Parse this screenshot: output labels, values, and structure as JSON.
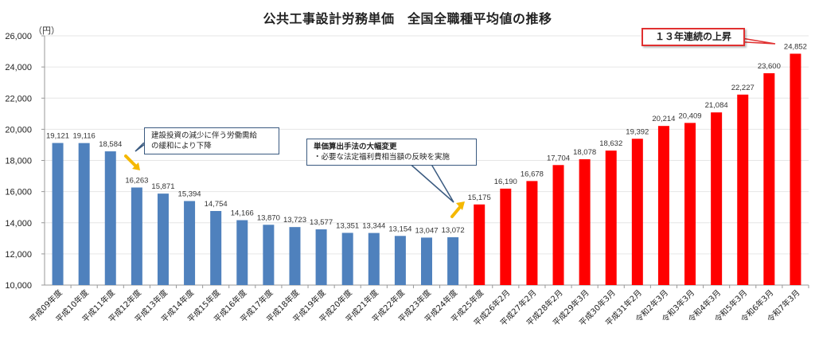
{
  "header": {
    "title": "公共工事設計労務単価　全国全職種平均値の推移",
    "unit_label": "（円）"
  },
  "annotations": {
    "drop_note": "建設投資の減少に伴う労働需給の緩和により下降",
    "drop_note_line1": "建設投資の減少に伴う労働需給",
    "drop_note_line2": "の緩和により下降",
    "method_change_title": "単価算出手法の大幅変更",
    "method_change_detail": "・必要な法定福利費相当額の反映を実施",
    "rise_note": "１３年連続の上昇"
  },
  "colors": {
    "decline_bar": "#4f81bd",
    "rise_bar": "#ff0000",
    "arrow": "#f5b800",
    "callout_blue_border": "#3a5a80",
    "callout_red_border": "#e03030",
    "grid": "#e6e6e6"
  },
  "chart_data": {
    "type": "bar",
    "title": "公共工事設計労務単価　全国全職種平均値の推移",
    "xlabel": "",
    "ylabel": "（円）",
    "ylim": [
      10000,
      26000
    ],
    "yticks": [
      10000,
      12000,
      14000,
      16000,
      18000,
      20000,
      22000,
      24000,
      26000
    ],
    "ytick_labels": [
      "10,000",
      "12,000",
      "14,000",
      "16,000",
      "18,000",
      "20,000",
      "22,000",
      "24,000",
      "26,000"
    ],
    "grid": true,
    "legend": null,
    "categories": [
      "平成09年度",
      "平成10年度",
      "平成11年度",
      "平成12年度",
      "平成13年度",
      "平成14年度",
      "平成15年度",
      "平成16年度",
      "平成17年度",
      "平成18年度",
      "平成19年度",
      "平成20年度",
      "平成21年度",
      "平成22年度",
      "平成23年度",
      "平成24年度",
      "平成25年度",
      "平成26年2月",
      "平成27年2月",
      "平成28年2月",
      "平成29年3月",
      "平成30年3月",
      "平成31年2月",
      "令和2年3月",
      "令和3年3月",
      "令和4年3月",
      "令和5年3月",
      "令和6年3月",
      "令和7年3月"
    ],
    "values": [
      19121,
      19116,
      18584,
      16263,
      15871,
      15394,
      14754,
      14166,
      13870,
      13723,
      13577,
      13351,
      13344,
      13154,
      13047,
      13072,
      15175,
      16190,
      16678,
      17704,
      18078,
      18632,
      19392,
      20214,
      20409,
      21084,
      22227,
      23600,
      24852
    ],
    "value_labels": [
      "19,121",
      "19,116",
      "18,584",
      "16,263",
      "15,871",
      "15,394",
      "14,754",
      "14,166",
      "13,870",
      "13,723",
      "13,577",
      "13,351",
      "13,344",
      "13,154",
      "13,047",
      "13,072",
      "15,175",
      "16,190",
      "16,678",
      "17,704",
      "18,078",
      "18,632",
      "19,392",
      "20,214",
      "20,409",
      "21,084",
      "22,227",
      "23,600",
      "24,852"
    ],
    "series_split": {
      "blue_count": 16,
      "red_count": 13
    },
    "annotations": [
      {
        "text": "建設投資の減少に伴う労働需給の緩和により下降",
        "near": "平成12年度"
      },
      {
        "text": "単価算出手法の大幅変更 ・必要な法定福利費相当額の反映を実施",
        "near": "平成25年度"
      },
      {
        "text": "１３年連続の上昇",
        "near": "令和7年3月"
      }
    ]
  }
}
